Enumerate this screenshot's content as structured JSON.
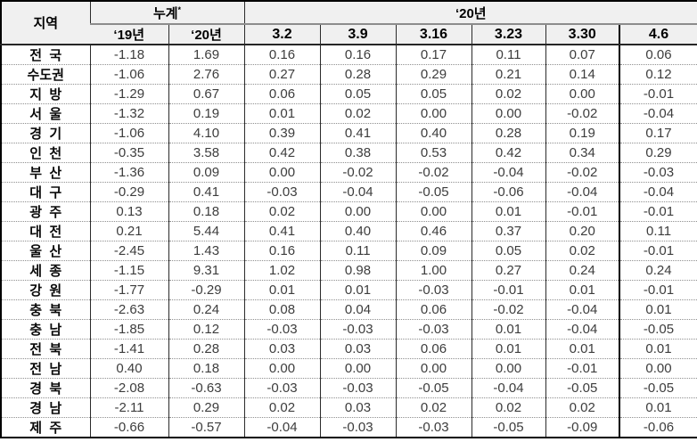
{
  "header": {
    "region": "지역",
    "cumulative": "누계",
    "cumulative_note": "*",
    "sub_y19": "‘19년",
    "sub_y20": "‘20년",
    "year_group": "‘20년",
    "weeks": [
      "3.2",
      "3.9",
      "3.16",
      "3.23",
      "3.30",
      "4.6"
    ]
  },
  "colors": {
    "header_bg": "#f0f0f0",
    "grid_dark": "#262626",
    "grid_gray": "#8c8c8c",
    "emphasis_border": "#000000",
    "number_text": "#3d3d3d"
  },
  "chart_data": {
    "type": "table",
    "columns": [
      "지역",
      "누계 ‘19년",
      "누계 ‘20년",
      "3.2",
      "3.9",
      "3.16",
      "3.23",
      "3.30",
      "4.6"
    ],
    "rows": [
      {
        "region": "전  국",
        "values": [
          "-1.18",
          "1.69",
          "0.16",
          "0.16",
          "0.17",
          "0.11",
          "0.07",
          "0.06"
        ]
      },
      {
        "region": "수도권",
        "values": [
          "-1.06",
          "2.76",
          "0.27",
          "0.28",
          "0.29",
          "0.21",
          "0.14",
          "0.12"
        ]
      },
      {
        "region": "지  방",
        "values": [
          "-1.29",
          "0.67",
          "0.06",
          "0.05",
          "0.05",
          "0.02",
          "0.00",
          "-0.01"
        ]
      },
      {
        "region": "서  울",
        "values": [
          "-1.32",
          "0.19",
          "0.01",
          "0.02",
          "0.00",
          "0.00",
          "-0.02",
          "-0.04"
        ]
      },
      {
        "region": "경  기",
        "values": [
          "-1.06",
          "4.10",
          "0.39",
          "0.41",
          "0.40",
          "0.28",
          "0.19",
          "0.17"
        ]
      },
      {
        "region": "인  천",
        "values": [
          "-0.35",
          "3.58",
          "0.42",
          "0.38",
          "0.53",
          "0.42",
          "0.34",
          "0.29"
        ]
      },
      {
        "region": "부  산",
        "values": [
          "-1.36",
          "0.09",
          "0.00",
          "-0.02",
          "-0.02",
          "-0.04",
          "-0.02",
          "-0.03"
        ]
      },
      {
        "region": "대  구",
        "values": [
          "-0.29",
          "0.41",
          "-0.03",
          "-0.04",
          "-0.05",
          "-0.06",
          "-0.04",
          "-0.04"
        ]
      },
      {
        "region": "광  주",
        "values": [
          "0.13",
          "0.18",
          "0.02",
          "0.00",
          "0.00",
          "0.01",
          "-0.01",
          "-0.01"
        ]
      },
      {
        "region": "대  전",
        "values": [
          "0.21",
          "5.44",
          "0.41",
          "0.40",
          "0.46",
          "0.37",
          "0.20",
          "0.11"
        ]
      },
      {
        "region": "울  산",
        "values": [
          "-2.45",
          "1.43",
          "0.16",
          "0.11",
          "0.09",
          "0.05",
          "0.02",
          "-0.01"
        ]
      },
      {
        "region": "세  종",
        "values": [
          "-1.15",
          "9.31",
          "1.02",
          "0.98",
          "1.00",
          "0.27",
          "0.24",
          "0.24"
        ]
      },
      {
        "region": "강  원",
        "values": [
          "-1.77",
          "-0.29",
          "0.01",
          "0.01",
          "-0.03",
          "-0.01",
          "0.01",
          "-0.01"
        ]
      },
      {
        "region": "충  북",
        "values": [
          "-2.63",
          "0.24",
          "0.08",
          "0.04",
          "0.06",
          "-0.02",
          "-0.04",
          "0.01"
        ]
      },
      {
        "region": "충  남",
        "values": [
          "-1.85",
          "0.12",
          "-0.03",
          "-0.03",
          "-0.03",
          "0.01",
          "-0.04",
          "-0.05"
        ]
      },
      {
        "region": "전  북",
        "values": [
          "-1.41",
          "0.28",
          "0.03",
          "0.03",
          "0.06",
          "0.01",
          "0.01",
          "0.01"
        ]
      },
      {
        "region": "전  남",
        "values": [
          "0.40",
          "0.18",
          "0.00",
          "0.00",
          "0.00",
          "0.00",
          "-0.01",
          "0.00"
        ]
      },
      {
        "region": "경  북",
        "values": [
          "-2.08",
          "-0.63",
          "-0.03",
          "-0.03",
          "-0.05",
          "-0.04",
          "-0.05",
          "-0.05"
        ]
      },
      {
        "region": "경  남",
        "values": [
          "-2.11",
          "0.29",
          "0.02",
          "0.03",
          "0.02",
          "0.02",
          "0.02",
          "0.01"
        ]
      },
      {
        "region": "제  주",
        "values": [
          "-0.66",
          "-0.57",
          "-0.04",
          "-0.03",
          "-0.03",
          "-0.05",
          "-0.09",
          "-0.06"
        ]
      }
    ]
  }
}
